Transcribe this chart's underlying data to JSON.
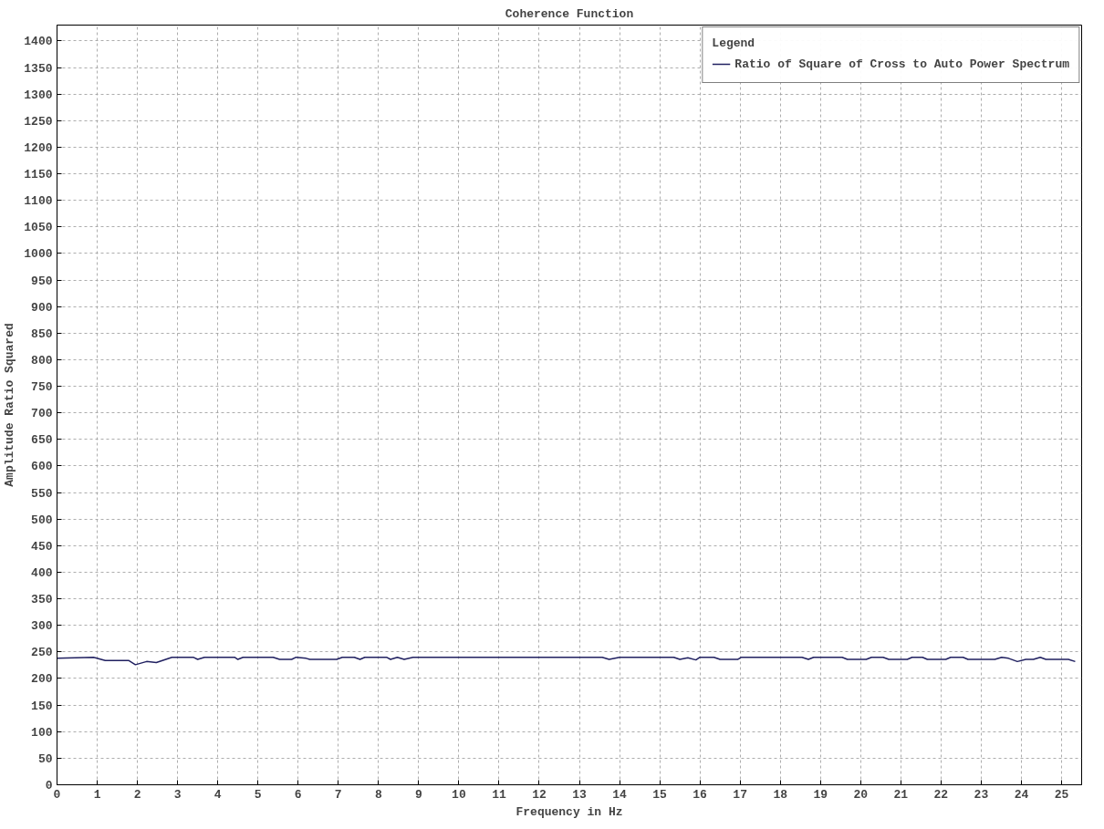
{
  "chart_data": {
    "type": "line",
    "title": "Coherence Function",
    "xlabel": "Frequency in Hz",
    "ylabel": "Amplitude Ratio Squared",
    "legend_title": "Legend",
    "xlim": [
      0,
      25.5
    ],
    "ylim": [
      0,
      1430
    ],
    "xticks": [
      0,
      1,
      2,
      3,
      4,
      5,
      6,
      7,
      8,
      9,
      10,
      11,
      12,
      13,
      14,
      15,
      16,
      17,
      18,
      19,
      20,
      21,
      22,
      23,
      24,
      25
    ],
    "yticks": [
      0,
      50,
      100,
      150,
      200,
      250,
      300,
      350,
      400,
      450,
      500,
      550,
      600,
      650,
      700,
      750,
      800,
      850,
      900,
      950,
      1000,
      1050,
      1100,
      1150,
      1200,
      1250,
      1300,
      1350,
      1400
    ],
    "grid": true,
    "legend": "top right",
    "line_style": "solid",
    "marker": "none",
    "series": [
      {
        "name": "Ratio of Square of Cross to Auto Power Spectrum",
        "color": "#202060",
        "x": [
          0,
          0.91,
          1.2,
          1.78,
          1.95,
          2.23,
          2.47,
          2.86,
          3.39,
          3.5,
          3.67,
          4.42,
          4.5,
          4.63,
          5.38,
          5.54,
          5.84,
          5.95,
          6.2,
          6.29,
          6.96,
          7.1,
          7.4,
          7.54,
          7.66,
          8.2,
          8.3,
          8.47,
          8.64,
          8.86,
          13.57,
          13.74,
          14.0,
          15.35,
          15.5,
          15.7,
          15.9,
          16.0,
          16.35,
          16.5,
          16.94,
          17.03,
          18.54,
          18.7,
          18.83,
          19.54,
          19.67,
          20.14,
          20.27,
          20.56,
          20.7,
          21.16,
          21.28,
          21.54,
          21.66,
          22.12,
          22.24,
          22.55,
          22.67,
          23.34,
          23.51,
          23.68,
          23.9,
          24.11,
          24.3,
          24.47,
          24.61,
          25.17,
          25.34
        ],
        "values": [
          238,
          240,
          234,
          234,
          226,
          232,
          230,
          240,
          240,
          236,
          240,
          240,
          236,
          240,
          240,
          236,
          236,
          240,
          238,
          236,
          236,
          240,
          240,
          236,
          240,
          240,
          236,
          240,
          236,
          240,
          240,
          236,
          240,
          240,
          236,
          239,
          235,
          240,
          240,
          236,
          236,
          240,
          240,
          236,
          240,
          240,
          236,
          236,
          240,
          240,
          236,
          236,
          240,
          240,
          236,
          236,
          240,
          240,
          236,
          236,
          240,
          238,
          232,
          236,
          236,
          240,
          236,
          236,
          232
        ]
      }
    ]
  }
}
